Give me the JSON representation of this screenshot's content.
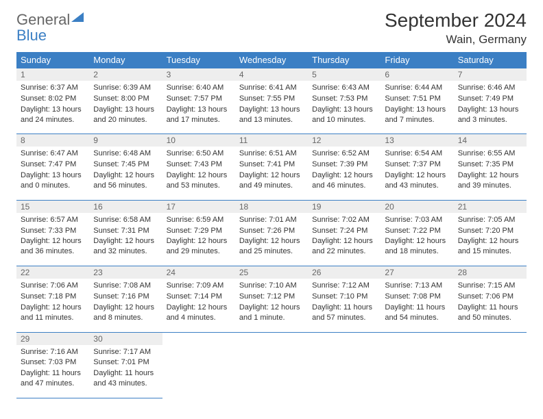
{
  "logo": {
    "part1": "General",
    "part2": "Blue"
  },
  "title": "September 2024",
  "location": "Wain, Germany",
  "header_bg": "#3b7fc4",
  "header_fg": "#ffffff",
  "daynum_bg": "#eeeeee",
  "text_color": "#333333",
  "weekdays": [
    "Sunday",
    "Monday",
    "Tuesday",
    "Wednesday",
    "Thursday",
    "Friday",
    "Saturday"
  ],
  "weeks": [
    [
      {
        "n": "1",
        "sr": "6:37 AM",
        "ss": "8:02 PM",
        "dl": "13 hours and 24 minutes."
      },
      {
        "n": "2",
        "sr": "6:39 AM",
        "ss": "8:00 PM",
        "dl": "13 hours and 20 minutes."
      },
      {
        "n": "3",
        "sr": "6:40 AM",
        "ss": "7:57 PM",
        "dl": "13 hours and 17 minutes."
      },
      {
        "n": "4",
        "sr": "6:41 AM",
        "ss": "7:55 PM",
        "dl": "13 hours and 13 minutes."
      },
      {
        "n": "5",
        "sr": "6:43 AM",
        "ss": "7:53 PM",
        "dl": "13 hours and 10 minutes."
      },
      {
        "n": "6",
        "sr": "6:44 AM",
        "ss": "7:51 PM",
        "dl": "13 hours and 7 minutes."
      },
      {
        "n": "7",
        "sr": "6:46 AM",
        "ss": "7:49 PM",
        "dl": "13 hours and 3 minutes."
      }
    ],
    [
      {
        "n": "8",
        "sr": "6:47 AM",
        "ss": "7:47 PM",
        "dl": "13 hours and 0 minutes."
      },
      {
        "n": "9",
        "sr": "6:48 AM",
        "ss": "7:45 PM",
        "dl": "12 hours and 56 minutes."
      },
      {
        "n": "10",
        "sr": "6:50 AM",
        "ss": "7:43 PM",
        "dl": "12 hours and 53 minutes."
      },
      {
        "n": "11",
        "sr": "6:51 AM",
        "ss": "7:41 PM",
        "dl": "12 hours and 49 minutes."
      },
      {
        "n": "12",
        "sr": "6:52 AM",
        "ss": "7:39 PM",
        "dl": "12 hours and 46 minutes."
      },
      {
        "n": "13",
        "sr": "6:54 AM",
        "ss": "7:37 PM",
        "dl": "12 hours and 43 minutes."
      },
      {
        "n": "14",
        "sr": "6:55 AM",
        "ss": "7:35 PM",
        "dl": "12 hours and 39 minutes."
      }
    ],
    [
      {
        "n": "15",
        "sr": "6:57 AM",
        "ss": "7:33 PM",
        "dl": "12 hours and 36 minutes."
      },
      {
        "n": "16",
        "sr": "6:58 AM",
        "ss": "7:31 PM",
        "dl": "12 hours and 32 minutes."
      },
      {
        "n": "17",
        "sr": "6:59 AM",
        "ss": "7:29 PM",
        "dl": "12 hours and 29 minutes."
      },
      {
        "n": "18",
        "sr": "7:01 AM",
        "ss": "7:26 PM",
        "dl": "12 hours and 25 minutes."
      },
      {
        "n": "19",
        "sr": "7:02 AM",
        "ss": "7:24 PM",
        "dl": "12 hours and 22 minutes."
      },
      {
        "n": "20",
        "sr": "7:03 AM",
        "ss": "7:22 PM",
        "dl": "12 hours and 18 minutes."
      },
      {
        "n": "21",
        "sr": "7:05 AM",
        "ss": "7:20 PM",
        "dl": "12 hours and 15 minutes."
      }
    ],
    [
      {
        "n": "22",
        "sr": "7:06 AM",
        "ss": "7:18 PM",
        "dl": "12 hours and 11 minutes."
      },
      {
        "n": "23",
        "sr": "7:08 AM",
        "ss": "7:16 PM",
        "dl": "12 hours and 8 minutes."
      },
      {
        "n": "24",
        "sr": "7:09 AM",
        "ss": "7:14 PM",
        "dl": "12 hours and 4 minutes."
      },
      {
        "n": "25",
        "sr": "7:10 AM",
        "ss": "7:12 PM",
        "dl": "12 hours and 1 minute."
      },
      {
        "n": "26",
        "sr": "7:12 AM",
        "ss": "7:10 PM",
        "dl": "11 hours and 57 minutes."
      },
      {
        "n": "27",
        "sr": "7:13 AM",
        "ss": "7:08 PM",
        "dl": "11 hours and 54 minutes."
      },
      {
        "n": "28",
        "sr": "7:15 AM",
        "ss": "7:06 PM",
        "dl": "11 hours and 50 minutes."
      }
    ],
    [
      {
        "n": "29",
        "sr": "7:16 AM",
        "ss": "7:03 PM",
        "dl": "11 hours and 47 minutes."
      },
      {
        "n": "30",
        "sr": "7:17 AM",
        "ss": "7:01 PM",
        "dl": "11 hours and 43 minutes."
      },
      null,
      null,
      null,
      null,
      null
    ]
  ],
  "labels": {
    "sunrise": "Sunrise:",
    "sunset": "Sunset:",
    "daylight": "Daylight:"
  }
}
